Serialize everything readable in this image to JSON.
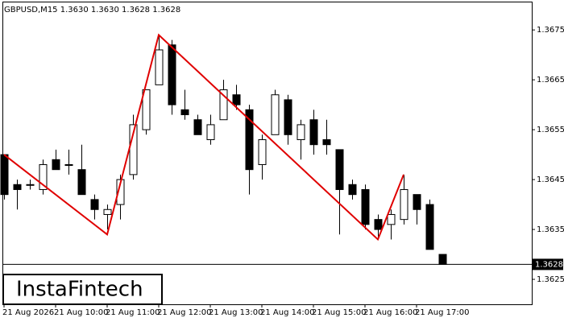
{
  "chart_data": {
    "type": "candlestick",
    "title": "GBPUSD,M15  1.3630 1.3630 1.3628 1.3628",
    "categories": [
      "21 Aug 2026",
      null,
      null,
      null,
      "21 Aug 10:00",
      null,
      null,
      null,
      "21 Aug 11:00",
      null,
      null,
      null,
      "21 Aug 12:00",
      null,
      null,
      null,
      "21 Aug 13:00",
      null,
      null,
      null,
      "21 Aug 14:00",
      null,
      null,
      null,
      "21 Aug 15:00",
      null,
      null,
      null,
      "21 Aug 16:00",
      null,
      null,
      null,
      "21 Aug 17:00",
      null,
      null
    ],
    "open": [
      1.365,
      1.3644,
      1.3644,
      1.3643,
      1.3649,
      1.3648,
      1.3647,
      1.3641,
      1.3638,
      1.364,
      1.3646,
      1.3655,
      1.3664,
      1.3672,
      1.3659,
      1.3657,
      1.3653,
      1.3657,
      1.3662,
      1.3659,
      1.3648,
      1.3654,
      1.3661,
      1.3653,
      1.3657,
      1.3653,
      1.3651,
      1.3644,
      1.3643,
      1.3637,
      1.3636,
      1.3637,
      1.3642,
      1.364,
      1.363
    ],
    "high": [
      1.365,
      1.3645,
      1.3645,
      1.3649,
      1.3651,
      1.3651,
      1.3652,
      1.3642,
      1.364,
      1.3646,
      1.3658,
      1.3663,
      1.3674,
      1.3673,
      1.3663,
      1.3658,
      1.3658,
      1.3665,
      1.3664,
      1.366,
      1.3654,
      1.3663,
      1.3662,
      1.3657,
      1.3659,
      1.3657,
      1.3651,
      1.3645,
      1.3644,
      1.3638,
      1.3639,
      1.3646,
      1.3642,
      1.3641,
      1.363
    ],
    "low": [
      1.3641,
      1.3639,
      1.3643,
      1.3642,
      1.3647,
      1.3646,
      1.3642,
      1.3637,
      1.3635,
      1.3637,
      1.3645,
      1.3654,
      1.3664,
      1.3658,
      1.3657,
      1.3654,
      1.3652,
      1.3657,
      1.3659,
      1.3642,
      1.3645,
      1.3654,
      1.3652,
      1.3649,
      1.365,
      1.365,
      1.3634,
      1.3641,
      1.3635,
      1.3633,
      1.3633,
      1.3636,
      1.3636,
      1.3631,
      1.3628
    ],
    "close": [
      1.3642,
      1.3643,
      1.3644,
      1.3648,
      1.3647,
      1.3648,
      1.3642,
      1.3639,
      1.3639,
      1.3645,
      1.3656,
      1.3663,
      1.3671,
      1.366,
      1.3658,
      1.3654,
      1.3656,
      1.3663,
      1.366,
      1.3647,
      1.3653,
      1.3662,
      1.3654,
      1.3656,
      1.3652,
      1.3652,
      1.3643,
      1.3642,
      1.3636,
      1.3635,
      1.3638,
      1.3643,
      1.3639,
      1.3631,
      1.3628
    ],
    "up_color": "#ffffff",
    "down_color": "#000000",
    "pattern": {
      "indices": [
        0,
        8,
        12,
        29,
        31
      ],
      "prices": [
        1.365,
        1.3634,
        1.3674,
        1.3633,
        1.3646
      ],
      "color": "#e00000"
    },
    "last_price": 1.3628,
    "ylim": [
      1.362,
      1.3681
    ],
    "yticks": [
      1.3675,
      1.3665,
      1.3655,
      1.3645,
      1.3635,
      1.3625
    ],
    "watermark": "InstaFintech"
  }
}
